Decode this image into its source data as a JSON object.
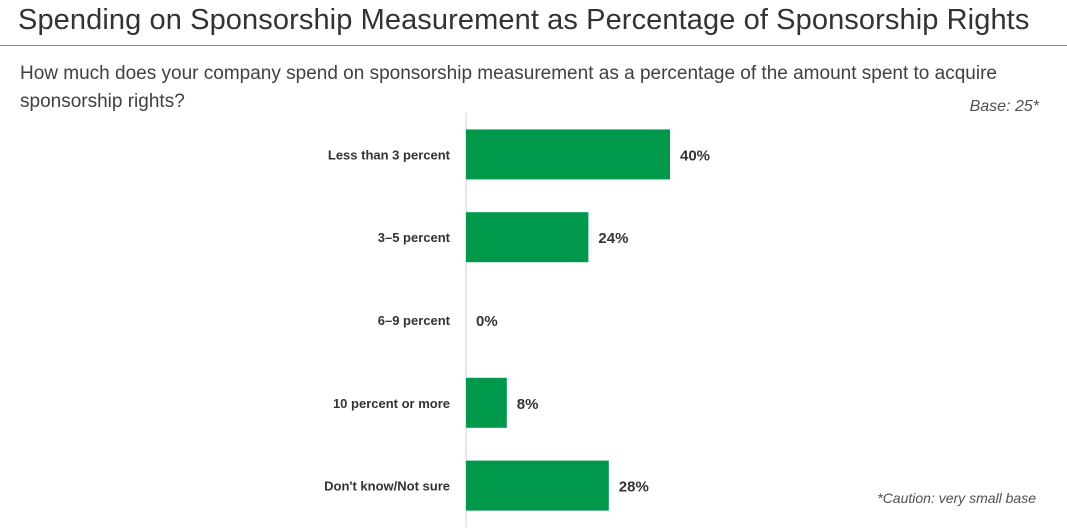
{
  "title": "Spending on Sponsorship Measurement as Percentage of Sponsorship Rights",
  "question": "How much does your company spend on sponsorship measurement as a percentage of the amount spent to acquire sponsorship rights?",
  "base": "Base: 25*",
  "caution": "*Caution: very small base",
  "colors": {
    "bar": "#00994c",
    "axis": "#d0d0d0"
  },
  "chart_data": {
    "type": "bar",
    "orientation": "horizontal",
    "categories": [
      "Less than 3 percent",
      "3–5 percent",
      "6–9 percent",
      "10 percent or more",
      "Don't know/Not sure"
    ],
    "values": [
      40,
      24,
      0,
      8,
      28
    ],
    "value_labels": [
      "40%",
      "24%",
      "0%",
      "8%",
      "28%"
    ],
    "unit": "%",
    "xlim": [
      0,
      40
    ],
    "grid": false,
    "legend": false
  }
}
